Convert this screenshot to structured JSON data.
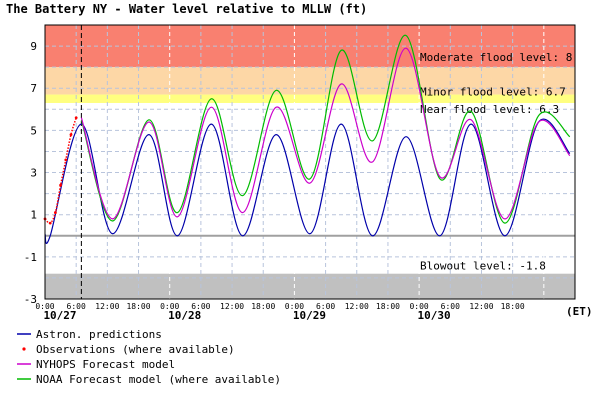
{
  "chart_data": {
    "type": "line",
    "title": "The Battery NY  -  Water level relative to MLLW (ft)",
    "xlabel": "(ET)",
    "ylabel": "",
    "ylim": [
      -3,
      10
    ],
    "yticks": [
      -3,
      -1,
      1,
      3,
      5,
      7,
      9
    ],
    "x_range_hours": [
      0,
      102
    ],
    "x_tick_labels": [
      "0:00",
      "6:00",
      "12:00",
      "18:00",
      "0:00",
      "6:00",
      "12:00",
      "18:00",
      "0:00",
      "6:00",
      "12:00",
      "18:00",
      "0:00",
      "6:00",
      "12:00",
      "18:00"
    ],
    "date_labels": [
      "10/27",
      "10/28",
      "10/29",
      "10/30"
    ],
    "x_unit_label": "(ET)",
    "now_marker_hour": 7,
    "grid": true,
    "thresholds": [
      {
        "label": "Moderate flood level: 8",
        "value": 8
      },
      {
        "label": "Minor flood level: 6.7",
        "value": 6.7
      },
      {
        "label": "Near flood level: 6.3",
        "value": 6.3
      },
      {
        "label": "Blowout level: -1.8",
        "value": -1.8
      }
    ],
    "bands": [
      {
        "from": 8,
        "to": 10,
        "color": "#f98070"
      },
      {
        "from": 6.7,
        "to": 8,
        "color": "#fdd7a6"
      },
      {
        "from": 6.3,
        "to": 6.7,
        "color": "#ffff80"
      },
      {
        "from": -3,
        "to": -1.8,
        "color": "#c0c0c0"
      }
    ],
    "zero_line": 0,
    "series": [
      {
        "name": "Astron. predictions",
        "color": "#0000aa",
        "x": [
          0,
          1,
          7,
          13,
          20,
          25.5,
          32,
          38,
          44.5,
          51,
          57,
          63,
          69.5,
          76,
          82,
          88.5,
          95,
          101
        ],
        "y": [
          0.1,
          0.0,
          5.3,
          0.1,
          4.8,
          0.0,
          5.3,
          0.0,
          4.8,
          0.1,
          5.3,
          0.0,
          4.7,
          0.0,
          5.3,
          0.0,
          5.4,
          3.9
        ]
      },
      {
        "name": "Observations (where available)",
        "color": "#ff0000",
        "x": [
          0,
          1,
          2,
          3,
          4,
          5,
          6
        ],
        "y": [
          0.8,
          0.6,
          1.1,
          2.4,
          3.6,
          4.8,
          5.6
        ]
      },
      {
        "name": "NYHOPS Forecast model",
        "color": "#cc00cc",
        "x": [
          7,
          13,
          20,
          25.5,
          32,
          38,
          44.5,
          51,
          57,
          63,
          69.5,
          76,
          82,
          88.5,
          95,
          101
        ],
        "y": [
          5.6,
          0.8,
          5.4,
          0.9,
          6.1,
          1.1,
          6.1,
          2.5,
          7.2,
          3.5,
          8.9,
          2.8,
          5.5,
          0.8,
          5.4,
          3.8
        ]
      },
      {
        "name": "NOAA Forecast model (where available)",
        "color": "#00bb00",
        "x": [
          7,
          13,
          20,
          25.5,
          32,
          38,
          44.5,
          51,
          57,
          63,
          69.5,
          76,
          82,
          88.5,
          95,
          101
        ],
        "y": [
          5.5,
          0.7,
          5.5,
          1.1,
          6.5,
          1.9,
          6.9,
          2.7,
          8.8,
          4.5,
          9.5,
          2.7,
          5.9,
          0.6,
          5.7,
          4.7
        ]
      }
    ],
    "legend_position": "bottom-left"
  }
}
